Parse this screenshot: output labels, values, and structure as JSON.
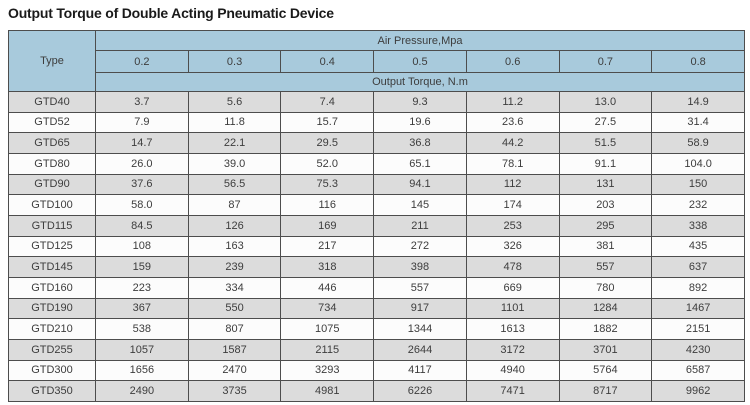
{
  "title": "Output Torque of Double Acting Pneumatic Device",
  "table": {
    "corner_header": "Type",
    "pressure_header": "Air Pressure,Mpa",
    "pressure_values": [
      "0.2",
      "0.3",
      "0.4",
      "0.5",
      "0.6",
      "0.7",
      "0.8"
    ],
    "torque_header": "Output Torque, N.m",
    "rows": [
      {
        "type": "GTD40",
        "values": [
          "3.7",
          "5.6",
          "7.4",
          "9.3",
          "11.2",
          "13.0",
          "14.9"
        ]
      },
      {
        "type": "GTD52",
        "values": [
          "7.9",
          "11.8",
          "15.7",
          "19.6",
          "23.6",
          "27.5",
          "31.4"
        ]
      },
      {
        "type": "GTD65",
        "values": [
          "14.7",
          "22.1",
          "29.5",
          "36.8",
          "44.2",
          "51.5",
          "58.9"
        ]
      },
      {
        "type": "GTD80",
        "values": [
          "26.0",
          "39.0",
          "52.0",
          "65.1",
          "78.1",
          "91.1",
          "104.0"
        ]
      },
      {
        "type": "GTD90",
        "values": [
          "37.6",
          "56.5",
          "75.3",
          "94.1",
          "112",
          "131",
          "150"
        ]
      },
      {
        "type": "GTD100",
        "values": [
          "58.0",
          "87",
          "116",
          "145",
          "174",
          "203",
          "232"
        ]
      },
      {
        "type": "GTD115",
        "values": [
          "84.5",
          "126",
          "169",
          "211",
          "253",
          "295",
          "338"
        ]
      },
      {
        "type": "GTD125",
        "values": [
          "108",
          "163",
          "217",
          "272",
          "326",
          "381",
          "435"
        ]
      },
      {
        "type": "GTD145",
        "values": [
          "159",
          "239",
          "318",
          "398",
          "478",
          "557",
          "637"
        ]
      },
      {
        "type": "GTD160",
        "values": [
          "223",
          "334",
          "446",
          "557",
          "669",
          "780",
          "892"
        ]
      },
      {
        "type": "GTD190",
        "values": [
          "367",
          "550",
          "734",
          "917",
          "1101",
          "1284",
          "1467"
        ]
      },
      {
        "type": "GTD210",
        "values": [
          "538",
          "807",
          "1075",
          "1344",
          "1613",
          "1882",
          "2151"
        ]
      },
      {
        "type": "GTD255",
        "values": [
          "1057",
          "1587",
          "2115",
          "2644",
          "3172",
          "3701",
          "4230"
        ]
      },
      {
        "type": "GTD300",
        "values": [
          "1656",
          "2470",
          "3293",
          "4117",
          "4940",
          "5764",
          "6587"
        ]
      },
      {
        "type": "GTD350",
        "values": [
          "2490",
          "3735",
          "4981",
          "6226",
          "7471",
          "8717",
          "9962"
        ]
      }
    ]
  },
  "colors": {
    "header_blue": "#a8cadc",
    "row_gray": "#dcdcdc",
    "row_white": "#fcfcfc",
    "border": "#4d4d4d",
    "text": "#3d3d3d",
    "title_color": "#1a1a1a"
  }
}
